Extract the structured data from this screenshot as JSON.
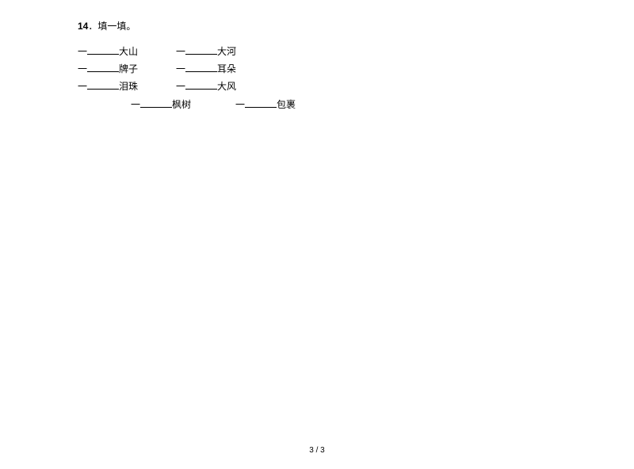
{
  "question": {
    "number": "14",
    "dot": "．",
    "title": "填一填。"
  },
  "rows": {
    "r1": {
      "prefix": "一",
      "word1": "大山",
      "word2": "大河"
    },
    "r2": {
      "prefix": "一",
      "word1": "牌子",
      "word2": "耳朵"
    },
    "r3": {
      "prefix": "一",
      "word1": "泪珠",
      "word2": "大风"
    },
    "r4": {
      "prefix": "一",
      "word1": "枫树",
      "word2": "包裹"
    }
  },
  "footer": {
    "page": "3 / 3"
  }
}
